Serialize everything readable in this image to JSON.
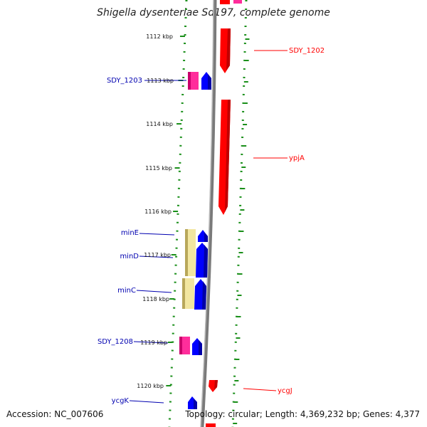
{
  "map": {
    "title": "Shigella dysenteriae Sd197, complete genome",
    "accession": "Accession: NC_007606",
    "summary": "Topology: circular; Length: 4,369,232 bp; Genes: 4,377"
  },
  "ticks": [
    {
      "label": "1112 kbp"
    },
    {
      "label": "1113 kbp"
    },
    {
      "label": "1114 kbp"
    },
    {
      "label": "1115 kbp"
    },
    {
      "label": "1116 kbp"
    },
    {
      "label": "1117 kbp"
    },
    {
      "label": "1118 kbp"
    },
    {
      "label": "1119 kbp"
    },
    {
      "label": "1120 kbp"
    }
  ],
  "genes_forward": [
    {
      "name": "SDY_1202",
      "color": "#ff0000"
    },
    {
      "name": "ypjA",
      "color": "#ff0000"
    },
    {
      "name": "ycgJ",
      "color": "#ff0000"
    }
  ],
  "genes_reverse": [
    {
      "name": "SDY_1203",
      "color": "#0000ff"
    },
    {
      "name": "minE",
      "color": "#0000ff"
    },
    {
      "name": "minD",
      "color": "#0000ff"
    },
    {
      "name": "minC",
      "color": "#0000ff"
    },
    {
      "name": "SDY_1208",
      "color": "#0000ff"
    },
    {
      "name": "ycgK",
      "color": "#0000ff"
    }
  ],
  "colors": {
    "forward_gene": "#ff0000",
    "reverse_gene": "#0000ff",
    "rna_or_other": "#ff2d9b",
    "operon_highlight": "#f2e6a0",
    "tick_marks": "#1a8f1a",
    "backbone": "#7a7a7a"
  }
}
